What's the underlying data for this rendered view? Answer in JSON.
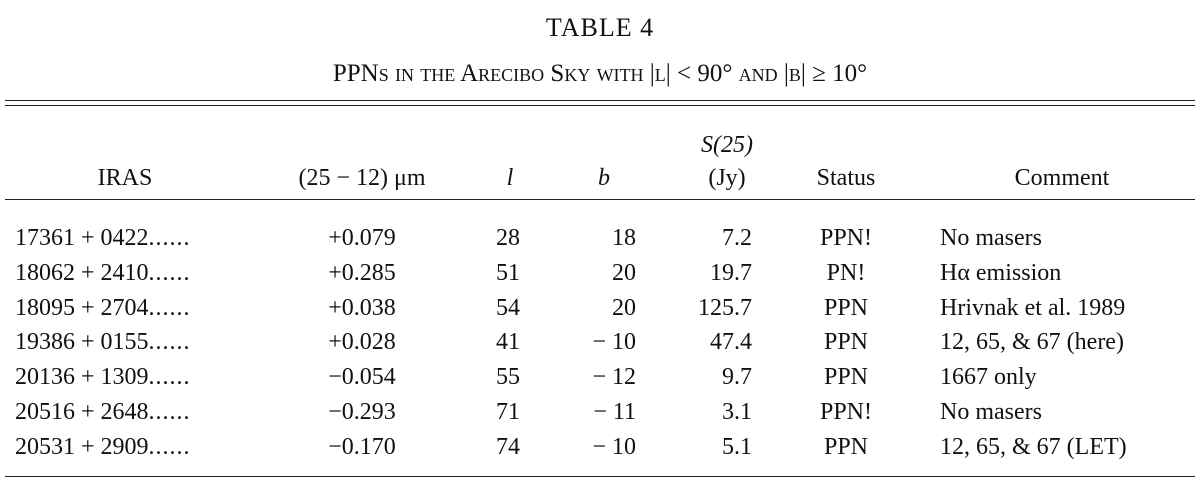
{
  "title": "TABLE 4",
  "subtitle": "PPNs in the Arecibo Sky with |l| < 90° and |b| ≥ 10°",
  "table": {
    "headers": [
      "IRAS",
      "(25 − 12) μm",
      "l",
      "b",
      [
        "S(25)",
        "(Jy)"
      ],
      "Status",
      "Comment"
    ],
    "rows": [
      [
        "17361 + 0422",
        "+0.079",
        "28",
        "18",
        "7.2",
        "PPN!",
        "No masers"
      ],
      [
        "18062 + 2410",
        "+0.285",
        "51",
        "20",
        "19.7",
        "PN!",
        "Hα emission"
      ],
      [
        "18095 + 2704",
        "+0.038",
        "54",
        "20",
        "125.7",
        "PPN",
        "Hrivnak et al. 1989"
      ],
      [
        "19386 + 0155",
        "+0.028",
        "41",
        "− 10",
        "47.4",
        "PPN",
        "12, 65, & 67 (here)"
      ],
      [
        "20136 + 1309",
        "−0.054",
        "55",
        "− 12",
        "9.7",
        "PPN",
        "1667 only"
      ],
      [
        "20516 + 2648",
        "−0.293",
        "71",
        "− 11",
        "3.1",
        "PPN!",
        "No masers"
      ],
      [
        "20531 + 2909",
        "−0.170",
        "74",
        "− 10",
        "5.1",
        "PPN",
        "12, 65, & 67 (LET)"
      ]
    ]
  }
}
